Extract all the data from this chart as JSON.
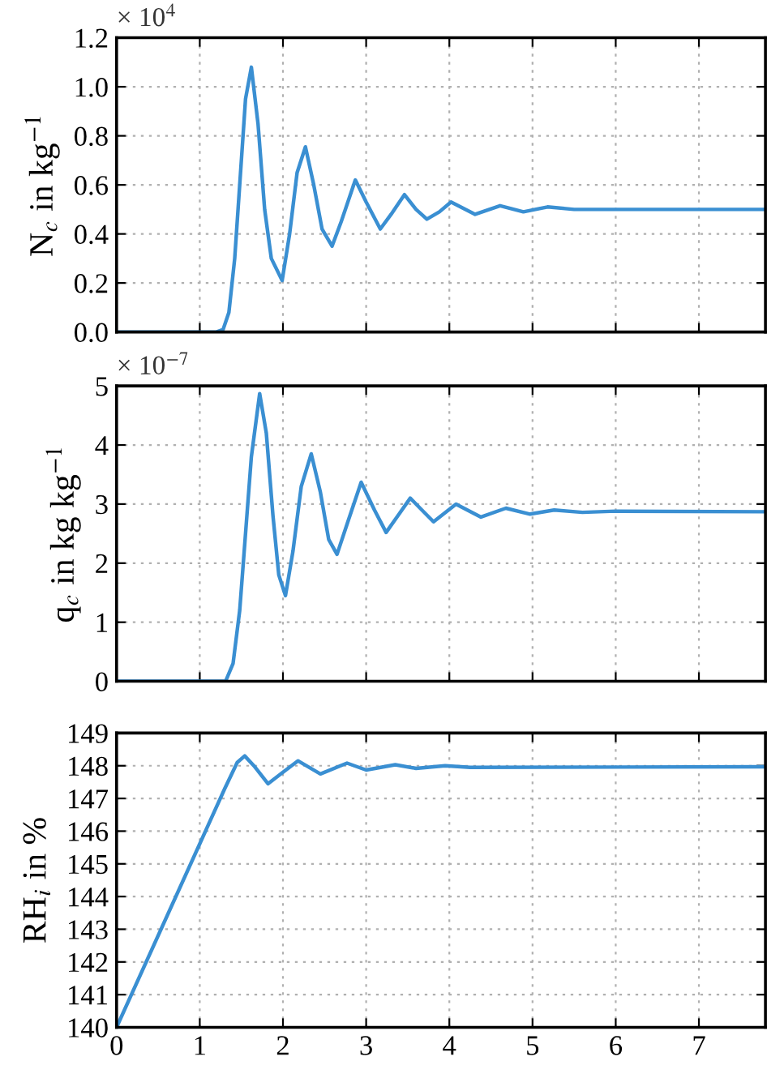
{
  "chart_data": [
    {
      "type": "line",
      "ylabel": "N$_{c}$ in kg$^{−1}$",
      "annotations": [
        "× 10$^{4}$"
      ],
      "xlim": [
        0,
        7.8
      ],
      "xticks": [
        0,
        1,
        2,
        3,
        4,
        5,
        6,
        7
      ],
      "ylim": [
        0,
        1.2
      ],
      "yticks": [
        {
          "value": 0,
          "label": "0.0"
        },
        {
          "value": 0.2,
          "label": "0.2"
        },
        {
          "value": 0.4,
          "label": "0.4"
        },
        {
          "value": 0.6,
          "label": "0.6"
        },
        {
          "value": 0.8,
          "label": "0.8"
        },
        {
          "value": 1.0,
          "label": "1.0"
        },
        {
          "value": 1.2,
          "label": "1.2"
        }
      ],
      "grid": true,
      "tick_labels": "y",
      "series": [
        {
          "color": "#3a8fd2",
          "x": [
            0,
            1.2,
            1.28,
            1.35,
            1.42,
            1.48,
            1.55,
            1.62,
            1.7,
            1.78,
            1.86,
            1.99,
            2.08,
            2.17,
            2.27,
            2.37,
            2.47,
            2.59,
            2.7,
            2.87,
            3.0,
            3.17,
            3.3,
            3.46,
            3.6,
            3.73,
            3.88,
            4.02,
            4.31,
            4.61,
            4.89,
            5.18,
            5.5,
            6.0,
            7.8
          ],
          "values": [
            0,
            0,
            0.01,
            0.08,
            0.3,
            0.6,
            0.95,
            1.08,
            0.85,
            0.5,
            0.3,
            0.21,
            0.4,
            0.65,
            0.755,
            0.6,
            0.42,
            0.35,
            0.45,
            0.62,
            0.53,
            0.42,
            0.48,
            0.56,
            0.5,
            0.46,
            0.49,
            0.53,
            0.48,
            0.515,
            0.49,
            0.51,
            0.5,
            0.5,
            0.5
          ]
        }
      ]
    },
    {
      "type": "line",
      "ylabel": "q$_{c}$ in kg kg$^{−1}$",
      "annotations": [
        "× 10$^{−7}$"
      ],
      "xlim": [
        0,
        7.8
      ],
      "xticks": [
        0,
        1,
        2,
        3,
        4,
        5,
        6,
        7
      ],
      "ylim": [
        0,
        5
      ],
      "yticks": [
        0,
        1,
        2,
        3,
        4,
        5
      ],
      "grid": true,
      "tick_labels": "y",
      "series": [
        {
          "color": "#3a8fd2",
          "x": [
            0,
            1.2,
            1.31,
            1.4,
            1.48,
            1.55,
            1.62,
            1.72,
            1.8,
            1.88,
            1.95,
            2.03,
            2.12,
            2.22,
            2.34,
            2.45,
            2.55,
            2.65,
            2.78,
            2.94,
            3.1,
            3.24,
            3.38,
            3.53,
            3.67,
            3.81,
            4.08,
            4.38,
            4.68,
            4.97,
            5.26,
            5.6,
            6.0,
            7.8
          ],
          "values": [
            0,
            0,
            0,
            0.3,
            1.2,
            2.5,
            3.8,
            4.87,
            4.2,
            2.8,
            1.8,
            1.45,
            2.2,
            3.3,
            3.85,
            3.2,
            2.4,
            2.15,
            2.7,
            3.37,
            2.9,
            2.52,
            2.8,
            3.1,
            2.9,
            2.7,
            3.0,
            2.78,
            2.93,
            2.83,
            2.9,
            2.86,
            2.88,
            2.87
          ]
        }
      ]
    },
    {
      "type": "line",
      "ylabel": "RH$_{i}$ in %",
      "xlim": [
        0,
        7.8
      ],
      "xticks": [
        0,
        1,
        2,
        3,
        4,
        5,
        6,
        7
      ],
      "ylim": [
        140,
        149
      ],
      "yticks": [
        140,
        141,
        142,
        143,
        144,
        145,
        146,
        147,
        148,
        149
      ],
      "grid": true,
      "series": [
        {
          "color": "#3a8fd2",
          "x": [
            0,
            1.3,
            1.45,
            1.54,
            1.65,
            1.82,
            2.0,
            2.18,
            2.45,
            2.77,
            3.0,
            3.35,
            3.6,
            3.95,
            4.25,
            7.8
          ],
          "values": [
            140,
            147.3,
            148.1,
            148.3,
            148.0,
            147.45,
            147.8,
            148.15,
            147.75,
            148.08,
            147.87,
            148.03,
            147.92,
            148.0,
            147.95,
            147.97
          ]
        }
      ]
    }
  ]
}
